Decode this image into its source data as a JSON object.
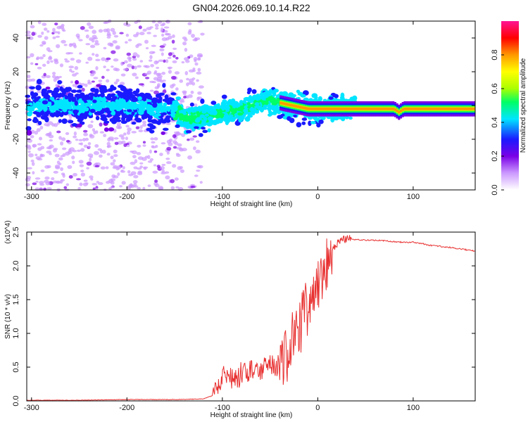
{
  "title": "GN04.2026.069.10.14.R22",
  "chart_data": [
    {
      "type": "heatmap",
      "title": "",
      "xlabel": "Height of straight line (km)",
      "ylabel": "Frequency (Hz)",
      "xlim": [
        -305,
        165
      ],
      "ylim": [
        -50,
        50
      ],
      "x_ticks": [
        -300,
        -200,
        -100,
        0,
        100
      ],
      "y_ticks": [
        -40,
        -20,
        0,
        20,
        40
      ],
      "colorbar": {
        "label": "Normalized spectral amplitude",
        "range": [
          0.0,
          1.0
        ],
        "ticks": [
          0.0,
          0.2,
          0.4,
          0.6,
          0.8
        ],
        "colors": [
          "#ffffff",
          "#cc99ff",
          "#7a00e6",
          "#1a1aff",
          "#00e5ff",
          "#00ff66",
          "#aaff00",
          "#ffff00",
          "#ff9900",
          "#ff0000",
          "#ff1493"
        ]
      },
      "ridge_center": [
        {
          "x": -300,
          "y": 0
        },
        {
          "x": -200,
          "y": 0
        },
        {
          "x": -150,
          "y": -3
        },
        {
          "x": -135,
          "y": -8
        },
        {
          "x": -110,
          "y": -6
        },
        {
          "x": -80,
          "y": -2
        },
        {
          "x": -50,
          "y": 3
        },
        {
          "x": -35,
          "y": 1
        },
        {
          "x": -10,
          "y": -2
        },
        {
          "x": 0,
          "y": -2
        },
        {
          "x": 50,
          "y": -2
        },
        {
          "x": 80,
          "y": -2
        },
        {
          "x": 85,
          "y": -4
        },
        {
          "x": 90,
          "y": -2
        },
        {
          "x": 165,
          "y": -2
        }
      ]
    },
    {
      "type": "line",
      "title": "",
      "xlabel": "Height of straight line (km)",
      "ylabel": "SNR (10 * v/v)",
      "y_multiplier": "(x10^4)",
      "xlim": [
        -305,
        165
      ],
      "ylim": [
        0,
        2.5
      ],
      "x_ticks": [
        -300,
        -200,
        -100,
        0,
        100
      ],
      "y_ticks": [
        0.0,
        0.5,
        1.0,
        1.5,
        2.0,
        2.5
      ],
      "series": [
        {
          "name": "SNR",
          "color": "#e83030",
          "x": [
            -305,
            -250,
            -200,
            -150,
            -120,
            -110,
            -105,
            -100,
            -95,
            -90,
            -80,
            -70,
            -60,
            -50,
            -40,
            -30,
            -25,
            -20,
            -15,
            -10,
            -5,
            0,
            5,
            10,
            15,
            20,
            25,
            30,
            40,
            50,
            60,
            70,
            80,
            90,
            100,
            110,
            115,
            120,
            140,
            165
          ],
          "y": [
            0.01,
            0.01,
            0.02,
            0.02,
            0.03,
            0.08,
            0.2,
            0.35,
            0.4,
            0.3,
            0.4,
            0.45,
            0.45,
            0.5,
            0.55,
            0.7,
            0.95,
            1.05,
            1.25,
            1.45,
            1.6,
            1.75,
            1.95,
            2.1,
            2.25,
            2.33,
            2.38,
            2.4,
            2.39,
            2.38,
            2.38,
            2.37,
            2.36,
            2.35,
            2.35,
            2.33,
            2.31,
            2.3,
            2.27,
            2.22
          ]
        }
      ]
    }
  ]
}
